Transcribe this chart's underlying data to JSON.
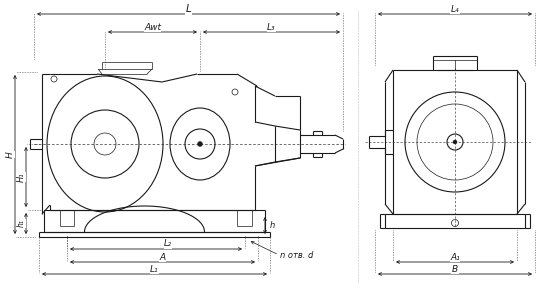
{
  "bg_color": "#ffffff",
  "line_color": "#1a1a1a",
  "dim_color": "#1a1a1a",
  "thin_lw": 0.5,
  "med_lw": 0.8,
  "thick_lw": 1.2,
  "fig_w": 5.5,
  "fig_h": 2.92,
  "labels": {
    "L": "L",
    "Awt": "Awt",
    "L3": "L₃",
    "L4": "L₄",
    "H": "H",
    "H1": "H₁",
    "h1": "h₁",
    "h": "h",
    "L2": "L₂",
    "A": "A",
    "L1": "L₁",
    "A1": "A₁",
    "B": "B",
    "n_otv_d": "n отв. d"
  }
}
